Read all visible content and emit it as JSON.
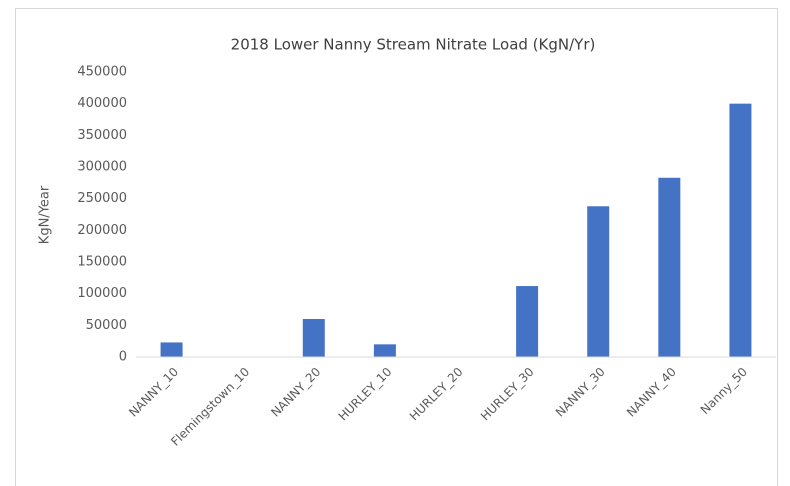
{
  "chart_data": {
    "type": "bar",
    "title": "2018 Lower Nanny Stream Nitrate Load (KgN/Yr)",
    "y_label": "KgN/Year",
    "categories": [
      "NANNY_10",
      "Flemingstown_10",
      "NANNY_20",
      "HURLEY_10",
      "HURLEY_20",
      "HURLEY_30",
      "NANNY_30",
      "NANNY_40",
      "Nanny_50"
    ],
    "values": [
      23000,
      0,
      60000,
      20000,
      0,
      112000,
      238000,
      283000,
      400000
    ],
    "color": "#4472c4",
    "ylim": [
      0,
      450000
    ],
    "yticks": [
      0,
      50000,
      100000,
      150000,
      200000,
      250000,
      300000,
      350000,
      400000,
      450000
    ],
    "grid": false
  }
}
